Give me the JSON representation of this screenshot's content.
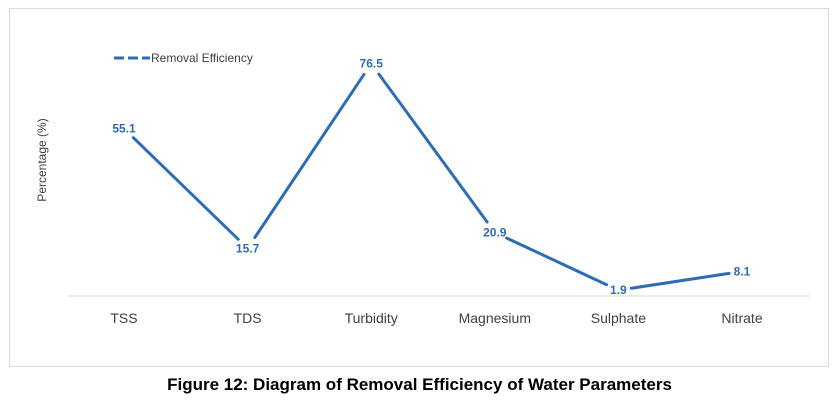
{
  "chart_data": {
    "type": "line",
    "title": "",
    "caption": "Figure 12: Diagram of Removal Efficiency of Water Parameters",
    "xlabel": "",
    "ylabel": "Percentage (%)",
    "categories": [
      "TSS",
      "TDS",
      "Turbidity",
      "Magnesium",
      "Sulphate",
      "Nitrate"
    ],
    "series": [
      {
        "name": "Removal Efficiency",
        "values": [
          55.1,
          15.7,
          76.5,
          20.9,
          1.9,
          8.1
        ],
        "labels": [
          "55.1",
          "15.7",
          "76.5",
          "20.9",
          "1.9",
          "8.1"
        ],
        "color": "#2e6db4"
      }
    ],
    "ylim": [
      0,
      80
    ],
    "grid": false,
    "legend": "top-left",
    "data_labels": true
  }
}
